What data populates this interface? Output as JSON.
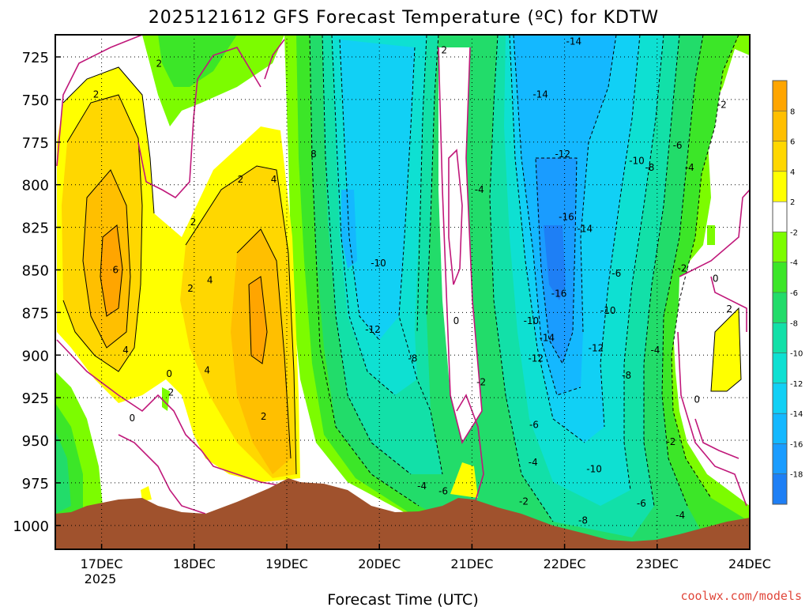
{
  "chart_data": {
    "type": "heatmap",
    "title": "2025121612 GFS Forecast Temperature (ºC) for KDTW",
    "xlabel": "Forecast Time (UTC)",
    "ylabel": "",
    "x_tick_labels": [
      "17DEC",
      "18DEC",
      "19DEC",
      "20DEC",
      "21DEC",
      "22DEC",
      "23DEC",
      "24DEC"
    ],
    "x_tick_sublabel": "2025",
    "y_tick_labels": [
      "725",
      "750",
      "775",
      "800",
      "825",
      "850",
      "875",
      "900",
      "925",
      "950",
      "975",
      "1000"
    ],
    "y_ticks": [
      725,
      750,
      775,
      800,
      825,
      850,
      875,
      900,
      925,
      950,
      975,
      1000
    ],
    "ylim": [
      1014,
      712
    ],
    "xlim_days": [
      16.5,
      24
    ],
    "grid": true,
    "colorbar_levels": [
      8,
      6,
      4,
      2,
      -2,
      -4,
      -6,
      -8,
      -10,
      -12,
      -14,
      -16,
      -18
    ],
    "colorbar_labels": [
      "8",
      "6",
      "4",
      "2",
      "-2",
      "-4",
      "-6",
      "-8",
      "-10",
      "-12",
      "-14",
      "-16",
      "-18"
    ],
    "colorbar_colors": [
      "#ffa500",
      "#ffbf00",
      "#ffd700",
      "#ffff00",
      "#ffffff",
      "#7cfc00",
      "#3ce628",
      "#22dc6a",
      "#12e0a8",
      "#0ee0d2",
      "#11d0f5",
      "#14b8ff",
      "#1a9cff",
      "#1e7ff5"
    ],
    "colors": {
      "brown_terrain": "#a0522d",
      "zero_contour": "#c0187a",
      "warm_1": "#ffff00",
      "warm_2": "#ffd700",
      "warm_3": "#ffbf00",
      "warm_4": "#ffa500",
      "cold_2": "#7cfc00",
      "cold_4": "#3ce628",
      "cold_6": "#22dc6a",
      "cold_8": "#12e0a8",
      "cold_10": "#0ee0d2",
      "cold_12": "#11d0f5",
      "cold_14": "#14b8ff",
      "cold_16": "#1a9cff",
      "cold_18": "#1e7ff5"
    },
    "contour_labels": [
      {
        "text": "2",
        "day": 17.62,
        "p": 729
      },
      {
        "text": "2",
        "day": 16.94,
        "p": 747
      },
      {
        "text": "8",
        "day": 19.29,
        "p": 782
      },
      {
        "text": "2",
        "day": 20.7,
        "p": 721
      },
      {
        "text": "-14",
        "day": 22.1,
        "p": 716
      },
      {
        "text": "-14",
        "day": 21.74,
        "p": 747
      },
      {
        "text": "-2",
        "day": 23.7,
        "p": 753
      },
      {
        "text": "-12",
        "day": 21.98,
        "p": 782
      },
      {
        "text": "-10",
        "day": 22.78,
        "p": 786
      },
      {
        "text": "-8",
        "day": 22.92,
        "p": 790
      },
      {
        "text": "-6",
        "day": 23.22,
        "p": 777
      },
      {
        "text": "-4",
        "day": 23.35,
        "p": 790
      },
      {
        "text": "2",
        "day": 18.5,
        "p": 797
      },
      {
        "text": "4",
        "day": 18.86,
        "p": 797
      },
      {
        "text": "-4",
        "day": 21.08,
        "p": 803
      },
      {
        "text": "2",
        "day": 17.99,
        "p": 822
      },
      {
        "text": "-16",
        "day": 22.02,
        "p": 819
      },
      {
        "text": "-14",
        "day": 22.22,
        "p": 826
      },
      {
        "text": "-10",
        "day": 19.99,
        "p": 846
      },
      {
        "text": "6",
        "day": 17.15,
        "p": 850
      },
      {
        "text": "-2",
        "day": 23.27,
        "p": 849
      },
      {
        "text": "-6",
        "day": 22.56,
        "p": 852
      },
      {
        "text": "0",
        "day": 23.63,
        "p": 855
      },
      {
        "text": "4",
        "day": 18.17,
        "p": 856
      },
      {
        "text": "2",
        "day": 17.96,
        "p": 861
      },
      {
        "text": "-16",
        "day": 21.94,
        "p": 864
      },
      {
        "text": "2",
        "day": 23.78,
        "p": 873
      },
      {
        "text": "-10",
        "day": 22.47,
        "p": 874
      },
      {
        "text": "0",
        "day": 20.83,
        "p": 880
      },
      {
        "text": "-10",
        "day": 21.64,
        "p": 880
      },
      {
        "text": "-12",
        "day": 19.93,
        "p": 885
      },
      {
        "text": "4",
        "day": 17.26,
        "p": 897
      },
      {
        "text": "-14",
        "day": 21.81,
        "p": 890
      },
      {
        "text": "-12",
        "day": 22.34,
        "p": 896
      },
      {
        "text": "-4",
        "day": 22.98,
        "p": 897
      },
      {
        "text": "-12",
        "day": 21.69,
        "p": 902
      },
      {
        "text": "-8",
        "day": 20.36,
        "p": 902
      },
      {
        "text": "4",
        "day": 18.14,
        "p": 909
      },
      {
        "text": "0",
        "day": 17.73,
        "p": 911
      },
      {
        "text": "-8",
        "day": 22.67,
        "p": 912
      },
      {
        "text": "-2",
        "day": 21.1,
        "p": 916
      },
      {
        "text": "2",
        "day": 17.75,
        "p": 922
      },
      {
        "text": "0",
        "day": 23.43,
        "p": 926
      },
      {
        "text": "0",
        "day": 17.33,
        "p": 937
      },
      {
        "text": "2",
        "day": 18.75,
        "p": 936
      },
      {
        "text": "-6",
        "day": 21.67,
        "p": 941
      },
      {
        "text": "-2",
        "day": 23.15,
        "p": 951
      },
      {
        "text": "-4",
        "day": 21.66,
        "p": 963
      },
      {
        "text": "-10",
        "day": 22.32,
        "p": 967
      },
      {
        "text": "-4",
        "day": 20.46,
        "p": 977
      },
      {
        "text": "-6",
        "day": 20.69,
        "p": 980
      },
      {
        "text": "-6",
        "day": 22.83,
        "p": 987
      },
      {
        "text": "-2",
        "day": 21.56,
        "p": 986
      },
      {
        "text": "-4",
        "day": 23.25,
        "p": 994
      },
      {
        "text": "-8",
        "day": 22.2,
        "p": 997
      }
    ]
  },
  "footer": {
    "credit": "coolwx.com/models"
  }
}
